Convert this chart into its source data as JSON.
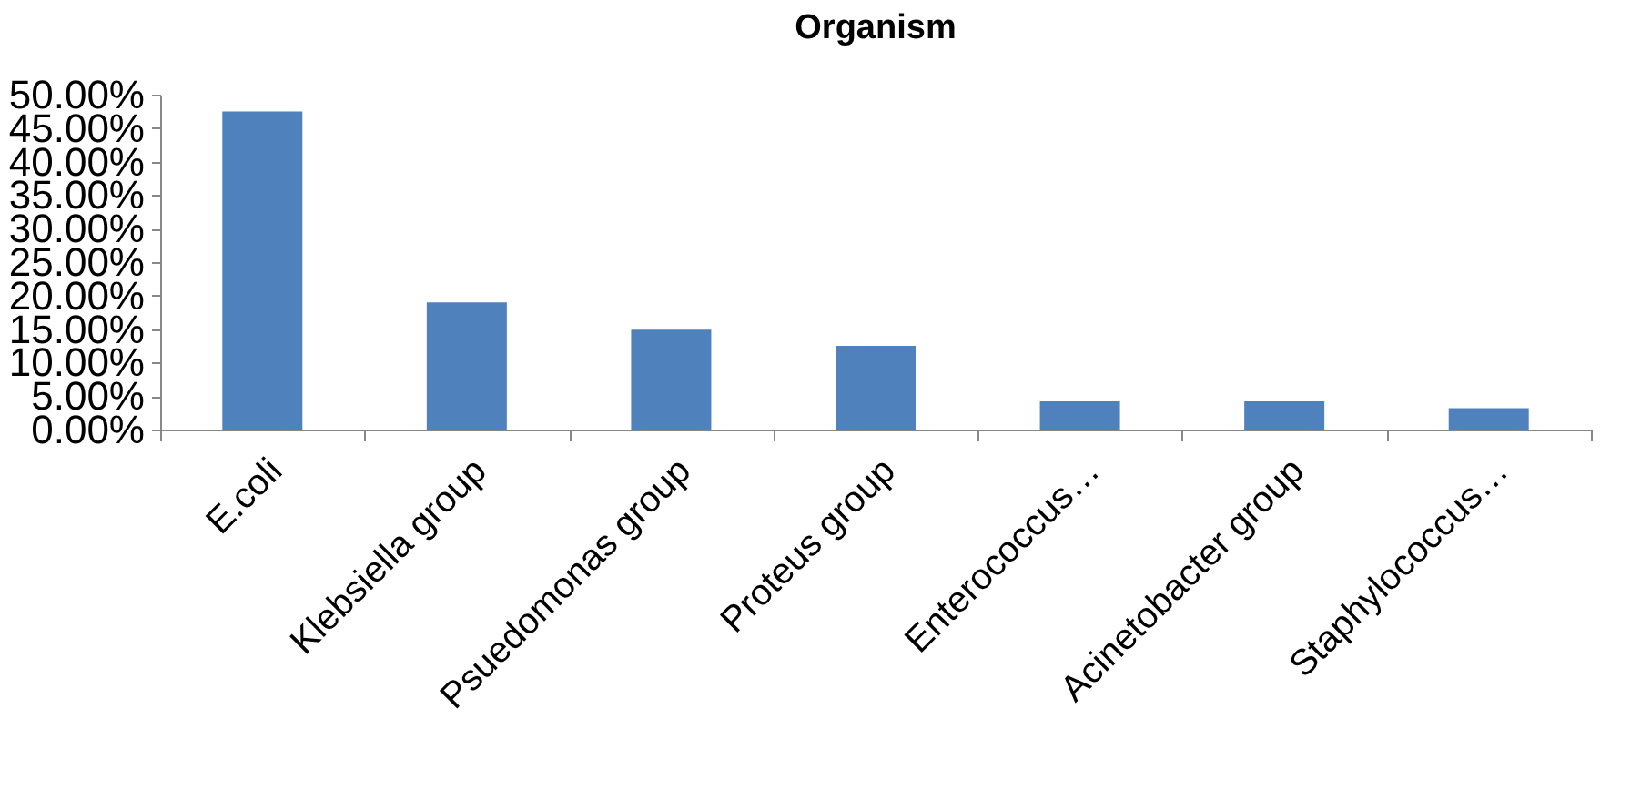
{
  "chart_data": {
    "type": "bar",
    "title": "Organism",
    "categories": [
      "E.coli",
      "Klebsiella group",
      "Psuedomonas group",
      "Proteus group",
      "Enterococcus…",
      "Acinetobacter group",
      "Staphylococcus…"
    ],
    "values": [
      47.5,
      19.0,
      14.9,
      12.5,
      4.2,
      4.2,
      3.2
    ],
    "color": "#4f81bd",
    "ylim": [
      0,
      50
    ],
    "yticks": [
      {
        "value": 0,
        "label": "0.00%"
      },
      {
        "value": 5,
        "label": "5.00%"
      },
      {
        "value": 10,
        "label": "10.00%"
      },
      {
        "value": 15,
        "label": "15.00%"
      },
      {
        "value": 20,
        "label": "20.00%"
      },
      {
        "value": 25,
        "label": "25.00%"
      },
      {
        "value": 30,
        "label": "30.00%"
      },
      {
        "value": 35,
        "label": "35.00%"
      },
      {
        "value": 40,
        "label": "40.00%"
      },
      {
        "value": 45,
        "label": "45.00%"
      },
      {
        "value": 50,
        "label": "50.00%"
      }
    ],
    "grid": false
  }
}
